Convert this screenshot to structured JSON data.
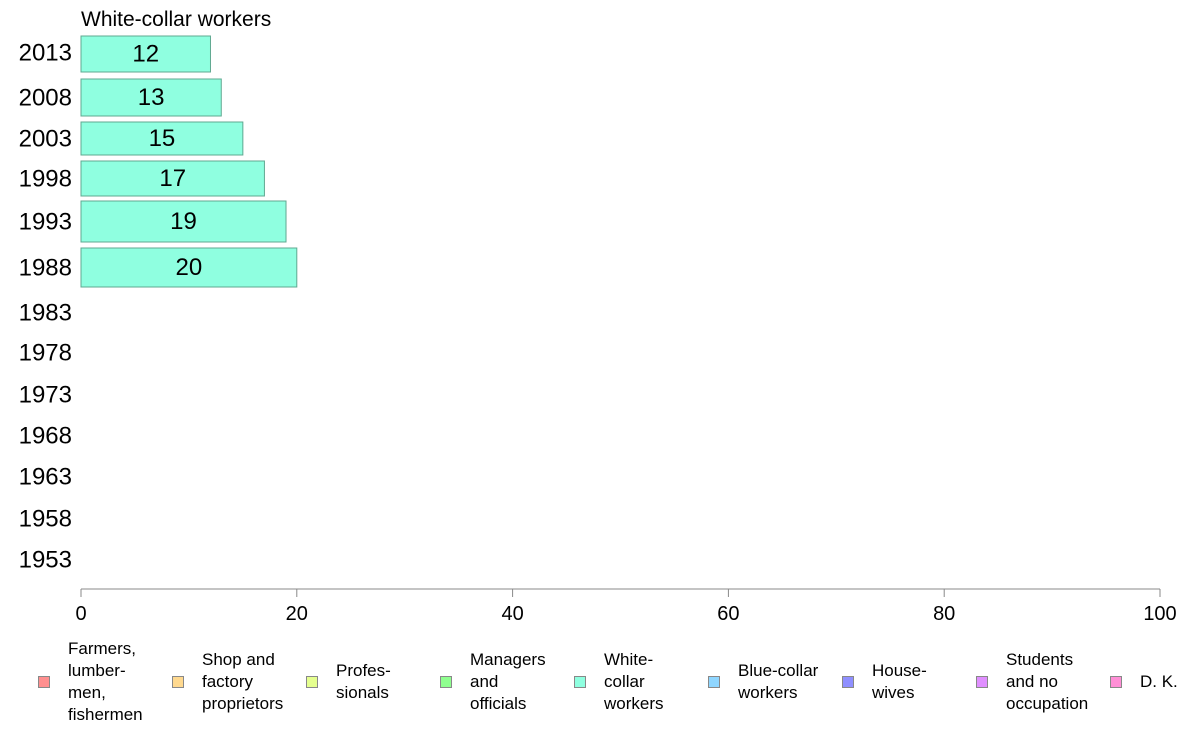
{
  "chart_data": {
    "type": "bar",
    "orientation": "horizontal",
    "title": "White-collar workers",
    "categories": [
      "2013",
      "2008",
      "2003",
      "1998",
      "1993",
      "1988",
      "1983",
      "1978",
      "1973",
      "1968",
      "1963",
      "1958",
      "1953"
    ],
    "series": [
      {
        "name": "White-collar workers",
        "color": "#8fffe0",
        "values": [
          12,
          13,
          15,
          17,
          19,
          20,
          null,
          null,
          null,
          null,
          null,
          null,
          null
        ]
      }
    ],
    "xlim": [
      0,
      100
    ],
    "xticks": [
      "0",
      "20",
      "40",
      "60",
      "80",
      "100"
    ],
    "grid": false,
    "legend_position": "bottom"
  },
  "legend": [
    {
      "label": "Farmers,\nlumber-\nmen,\nfishermen",
      "color": "#ff8f8f"
    },
    {
      "label": "Shop and\nfactory\nproprietors",
      "color": "#ffd98f"
    },
    {
      "label": "Profes-\nsionals",
      "color": "#e5ff8f"
    },
    {
      "label": "Managers\nand\nofficials",
      "color": "#8fff8f"
    },
    {
      "label": "White-\ncollar\nworkers",
      "color": "#8fffe0"
    },
    {
      "label": "Blue-collar\nworkers",
      "color": "#8fd6ff"
    },
    {
      "label": "House-\nwives",
      "color": "#8f8fff"
    },
    {
      "label": "Students\nand no\noccupation",
      "color": "#e08fff"
    },
    {
      "label": "D. K.",
      "color": "#ff8fd6"
    }
  ]
}
